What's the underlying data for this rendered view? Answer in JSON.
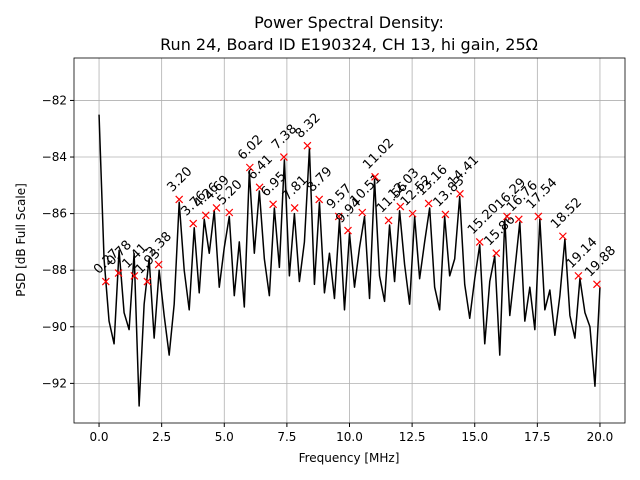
{
  "chart_data": {
    "type": "line",
    "title": "Power Spectral Density:",
    "subtitle": "Run 24, Board ID E190324, CH 13, hi gain, 25Ω",
    "xlabel": "Frequency [MHz]",
    "ylabel": "PSD [dB Full Scale]",
    "color": "#000000",
    "marker_color": "#ff0000",
    "grid": true,
    "xlim": [
      -1,
      21
    ],
    "ylim": [
      -93.4,
      -80.5
    ],
    "xticks": [
      {
        "value": 0,
        "label": "0.0"
      },
      2.5,
      {
        "value": 5,
        "label": "5.0"
      },
      7.5,
      {
        "value": 10,
        "label": "10.0"
      },
      12.5,
      {
        "value": 15,
        "label": "15.0"
      },
      17.5,
      {
        "value": 20,
        "label": "20.0"
      }
    ],
    "yticks": [
      {
        "value": -92,
        "label": "−92"
      },
      {
        "value": -90,
        "label": "−90"
      },
      {
        "value": -88,
        "label": "−88"
      },
      {
        "value": -86,
        "label": "−86"
      },
      {
        "value": -84,
        "label": "−84"
      },
      {
        "value": -82,
        "label": "−82"
      }
    ],
    "x": [
      0.0,
      0.2,
      0.4,
      0.6,
      0.8,
      1.0,
      1.2,
      1.4,
      1.6,
      1.8,
      2.0,
      2.2,
      2.4,
      2.6,
      2.8,
      3.0,
      3.2,
      3.4,
      3.6,
      3.8,
      4.0,
      4.2,
      4.4,
      4.6,
      4.8,
      5.0,
      5.2,
      5.4,
      5.6,
      5.8,
      6.0,
      6.2,
      6.4,
      6.6,
      6.8,
      7.0,
      7.2,
      7.4,
      7.6,
      7.8,
      8.0,
      8.2,
      8.4,
      8.6,
      8.8,
      9.0,
      9.2,
      9.4,
      9.6,
      9.8,
      10.0,
      10.2,
      10.4,
      10.6,
      10.8,
      11.0,
      11.2,
      11.4,
      11.6,
      11.8,
      12.0,
      12.2,
      12.4,
      12.6,
      12.8,
      13.0,
      13.2,
      13.4,
      13.6,
      13.8,
      14.0,
      14.2,
      14.4,
      14.6,
      14.8,
      15.0,
      15.2,
      15.4,
      15.6,
      15.8,
      16.0,
      16.2,
      16.4,
      16.6,
      16.8,
      17.0,
      17.2,
      17.4,
      17.6,
      17.8,
      18.0,
      18.2,
      18.4,
      18.6,
      18.8,
      19.0,
      19.2,
      19.4,
      19.6,
      19.8,
      20.0
    ],
    "values": [
      -82.5,
      -87.6,
      -89.8,
      -90.6,
      -87.3,
      -89.5,
      -90.1,
      -87.4,
      -92.8,
      -89.2,
      -87.6,
      -90.4,
      -88.0,
      -89.6,
      -91.0,
      -89.2,
      -85.6,
      -88.0,
      -89.4,
      -86.5,
      -88.8,
      -86.2,
      -87.4,
      -85.9,
      -88.6,
      -87.2,
      -86.1,
      -88.9,
      -87.0,
      -89.3,
      -84.5,
      -87.4,
      -85.2,
      -87.6,
      -88.9,
      -85.8,
      -87.9,
      -84.1,
      -88.2,
      -86.0,
      -88.4,
      -87.0,
      -83.7,
      -88.5,
      -85.6,
      -88.8,
      -87.4,
      -89.0,
      -86.2,
      -89.4,
      -86.7,
      -88.6,
      -87.2,
      -86.1,
      -89.0,
      -84.8,
      -88.2,
      -89.1,
      -86.4,
      -88.4,
      -85.9,
      -87.8,
      -89.2,
      -86.1,
      -88.3,
      -87.0,
      -85.8,
      -88.6,
      -89.4,
      -86.1,
      -88.2,
      -87.6,
      -85.4,
      -88.5,
      -89.7,
      -88.3,
      -87.1,
      -90.6,
      -88.4,
      -87.5,
      -91.0,
      -86.2,
      -89.6,
      -88.0,
      -86.3,
      -89.8,
      -88.6,
      -90.1,
      -86.2,
      -89.4,
      -88.7,
      -90.3,
      -88.9,
      -86.9,
      -89.6,
      -90.4,
      -88.3,
      -89.5,
      -90.0,
      -92.1,
      -88.6
    ],
    "annotations": [
      {
        "x": 0.27,
        "y": -88.4,
        "label": "0.27"
      },
      {
        "x": 0.78,
        "y": -88.1,
        "label": "0.78"
      },
      {
        "x": 1.41,
        "y": -88.2,
        "label": "1.41"
      },
      {
        "x": 1.93,
        "y": -88.4,
        "label": "1.93"
      },
      {
        "x": 2.38,
        "y": -87.8,
        "label": "2.38"
      },
      {
        "x": 3.2,
        "y": -85.5,
        "label": "3.20"
      },
      {
        "x": 3.76,
        "y": -86.35,
        "label": "3.76"
      },
      {
        "x": 4.26,
        "y": -86.06,
        "label": "4.26"
      },
      {
        "x": 4.69,
        "y": -85.8,
        "label": "4.69"
      },
      {
        "x": 5.2,
        "y": -85.96,
        "label": "5.20"
      },
      {
        "x": 6.02,
        "y": -84.37,
        "label": "6.02"
      },
      {
        "x": 6.41,
        "y": -85.07,
        "label": "6.41"
      },
      {
        "x": 6.95,
        "y": -85.67,
        "label": "6.95"
      },
      {
        "x": 7.38,
        "y": -84.0,
        "label": "7.38"
      },
      {
        "x": 7.81,
        "y": -85.8,
        "label": "7.81"
      },
      {
        "x": 8.32,
        "y": -83.6,
        "label": "8.32"
      },
      {
        "x": 8.79,
        "y": -85.5,
        "label": "8.79"
      },
      {
        "x": 9.57,
        "y": -86.1,
        "label": "9.57"
      },
      {
        "x": 9.94,
        "y": -86.6,
        "label": "9.94"
      },
      {
        "x": 10.51,
        "y": -85.96,
        "label": "10.51"
      },
      {
        "x": 11.02,
        "y": -84.7,
        "label": "11.02"
      },
      {
        "x": 11.56,
        "y": -86.24,
        "label": "11.56"
      },
      {
        "x": 12.03,
        "y": -85.75,
        "label": "12.03"
      },
      {
        "x": 12.52,
        "y": -86.0,
        "label": "12.52"
      },
      {
        "x": 13.16,
        "y": -85.64,
        "label": "13.16"
      },
      {
        "x": 13.83,
        "y": -86.03,
        "label": "13.83"
      },
      {
        "x": 14.41,
        "y": -85.3,
        "label": "14.41"
      },
      {
        "x": 15.2,
        "y": -87.0,
        "label": "15.20"
      },
      {
        "x": 15.86,
        "y": -87.4,
        "label": "15.86"
      },
      {
        "x": 16.29,
        "y": -86.1,
        "label": "16.29"
      },
      {
        "x": 16.76,
        "y": -86.2,
        "label": "16.76"
      },
      {
        "x": 17.54,
        "y": -86.1,
        "label": "17.54"
      },
      {
        "x": 18.52,
        "y": -86.8,
        "label": "18.52"
      },
      {
        "x": 19.14,
        "y": -88.2,
        "label": "19.14"
      },
      {
        "x": 19.88,
        "y": -88.5,
        "label": "19.88"
      }
    ]
  }
}
